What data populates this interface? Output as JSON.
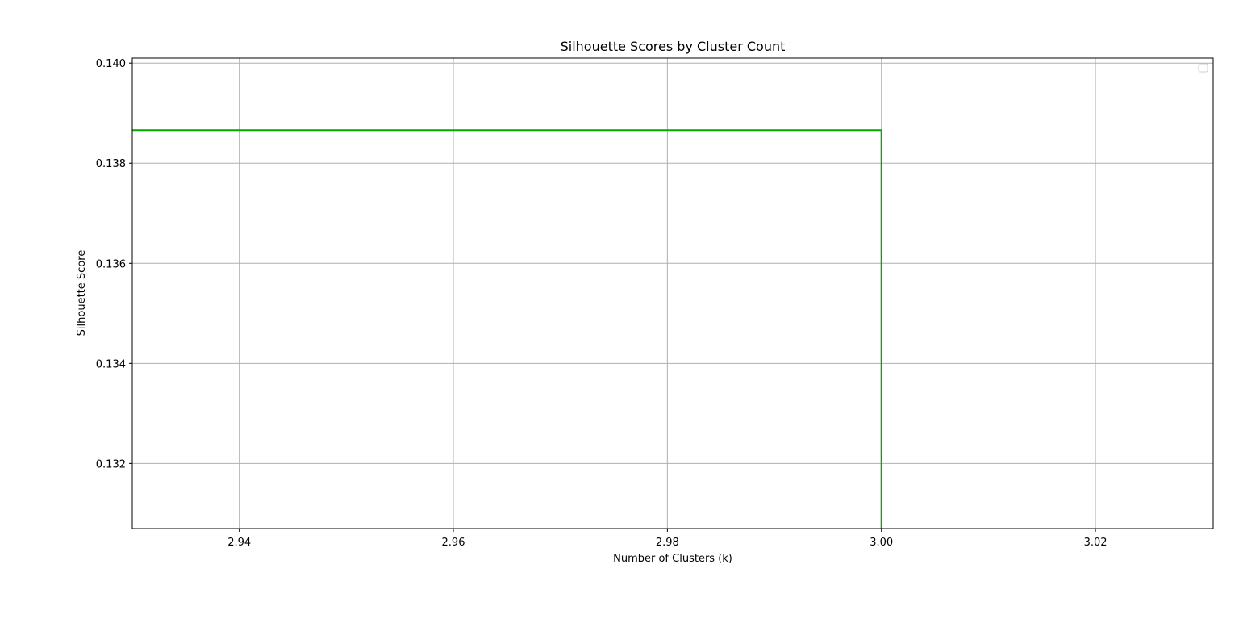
{
  "chart_data": {
    "type": "line",
    "title": "Silhouette Scores by Cluster Count",
    "xlabel": "Number of Clusters (k)",
    "ylabel": "Silhouette Score",
    "xlim": [
      2.93,
      3.031
    ],
    "ylim": [
      0.1307,
      0.1401
    ],
    "xticks": [
      2.94,
      2.96,
      2.98,
      3.0,
      3.02
    ],
    "xtick_labels": [
      "2.94",
      "2.96",
      "2.98",
      "3.00",
      "3.02"
    ],
    "yticks": [
      0.132,
      0.134,
      0.136,
      0.138,
      0.14
    ],
    "ytick_labels": [
      "0.132",
      "0.134",
      "0.136",
      "0.138",
      "0.140"
    ],
    "grid": true,
    "legend": "top-right (empty)",
    "series": [
      {
        "color": "#00aa00",
        "x": [
          2.93,
          3.0,
          3.0
        ],
        "y": [
          0.13866,
          0.13866,
          0.1307
        ]
      }
    ]
  }
}
